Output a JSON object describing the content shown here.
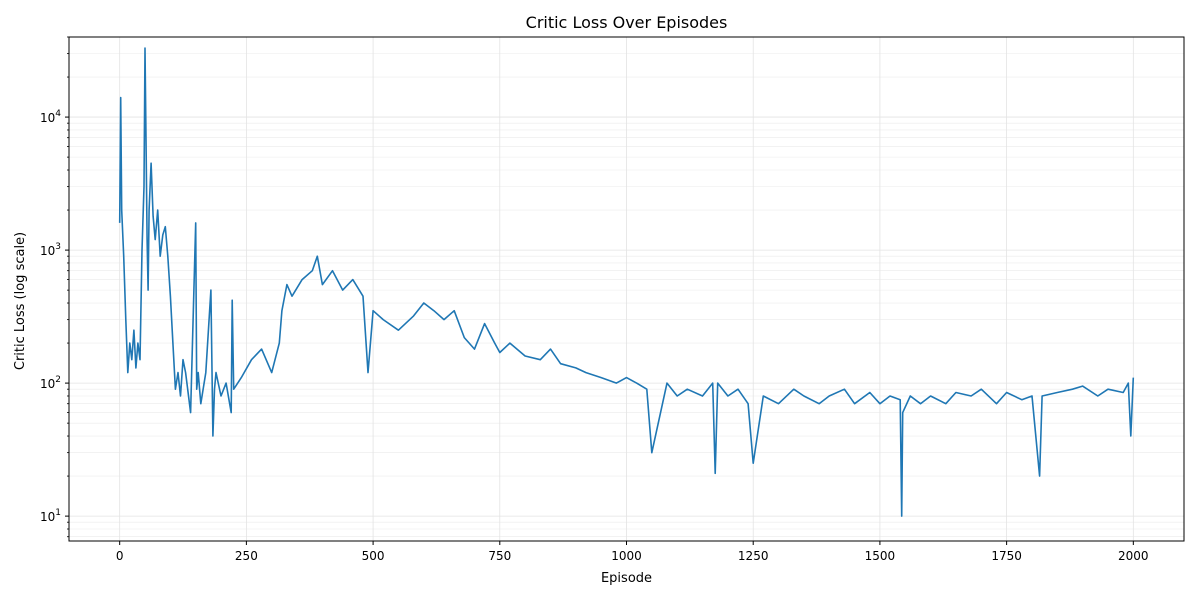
{
  "chart_data": {
    "type": "line",
    "title": "Critic Loss Over Episodes",
    "xlabel": "Episode",
    "ylabel": "Critic Loss (log scale)",
    "yscale": "log",
    "xlim": [
      -100,
      2100
    ],
    "ylim": [
      6.5,
      40000
    ],
    "grid": true,
    "series_color": "#1f77b4",
    "x_ticks": [
      0,
      250,
      500,
      750,
      1000,
      1250,
      1500,
      1750,
      2000
    ],
    "x_tick_labels": [
      "0",
      "250",
      "500",
      "750",
      "1000",
      "1250",
      "1500",
      "1750",
      "2000"
    ],
    "y_ticks": [
      10,
      100,
      1000,
      10000
    ],
    "y_tick_labels": [
      {
        "base": "10",
        "exp": "1"
      },
      {
        "base": "10",
        "exp": "2"
      },
      {
        "base": "10",
        "exp": "3"
      },
      {
        "base": "10",
        "exp": "4"
      }
    ],
    "series": [
      {
        "x": [
          0,
          2,
          4,
          8,
          12,
          16,
          20,
          24,
          28,
          32,
          36,
          40,
          44,
          48,
          50,
          52,
          54,
          56,
          58,
          62,
          66,
          70,
          75,
          80,
          85,
          90,
          95,
          100,
          105,
          110,
          115,
          120,
          125,
          130,
          140,
          150,
          152,
          155,
          160,
          170,
          180,
          184,
          187,
          190,
          200,
          210,
          220,
          222,
          225,
          240,
          260,
          280,
          300,
          315,
          320,
          330,
          340,
          360,
          380,
          390,
          400,
          420,
          440,
          460,
          480,
          490,
          500,
          520,
          550,
          580,
          600,
          620,
          640,
          660,
          680,
          700,
          720,
          740,
          750,
          770,
          800,
          830,
          850,
          870,
          900,
          920,
          950,
          980,
          1000,
          1020,
          1040,
          1050,
          1080,
          1100,
          1120,
          1150,
          1170,
          1175,
          1180,
          1200,
          1220,
          1240,
          1250,
          1270,
          1300,
          1330,
          1350,
          1380,
          1400,
          1430,
          1450,
          1480,
          1500,
          1520,
          1540,
          1543,
          1545,
          1560,
          1580,
          1600,
          1630,
          1650,
          1680,
          1700,
          1730,
          1750,
          1780,
          1800,
          1815,
          1820,
          1850,
          1880,
          1900,
          1930,
          1950,
          1980,
          1990,
          1995,
          2000
        ],
        "y": [
          1600,
          14000,
          2000,
          900,
          300,
          120,
          200,
          150,
          250,
          130,
          200,
          150,
          1000,
          3000,
          33000,
          7000,
          1200,
          500,
          2000,
          4500,
          1800,
          1200,
          2000,
          900,
          1300,
          1500,
          900,
          450,
          200,
          90,
          120,
          80,
          150,
          120,
          60,
          1600,
          90,
          120,
          70,
          120,
          500,
          40,
          90,
          120,
          80,
          100,
          60,
          420,
          90,
          110,
          150,
          180,
          120,
          200,
          350,
          550,
          450,
          600,
          700,
          900,
          550,
          700,
          500,
          600,
          450,
          120,
          350,
          300,
          250,
          320,
          400,
          350,
          300,
          350,
          220,
          180,
          280,
          200,
          170,
          200,
          160,
          150,
          180,
          140,
          130,
          120,
          110,
          100,
          110,
          100,
          90,
          30,
          100,
          80,
          90,
          80,
          100,
          21,
          100,
          80,
          90,
          70,
          25,
          80,
          70,
          90,
          80,
          70,
          80,
          90,
          70,
          85,
          70,
          80,
          75,
          10,
          60,
          80,
          70,
          80,
          70,
          85,
          80,
          90,
          70,
          85,
          75,
          80,
          20,
          80,
          85,
          90,
          95,
          80,
          90,
          85,
          100,
          40,
          110
        ]
      }
    ]
  }
}
